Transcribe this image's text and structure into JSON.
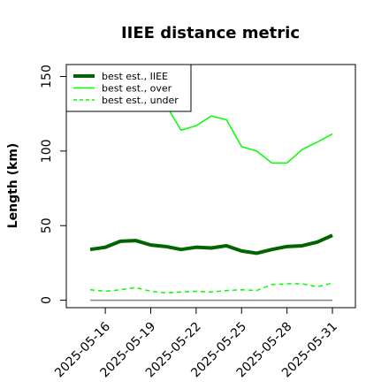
{
  "chart_data": {
    "type": "line",
    "title": "IIEE distance metric",
    "xlabel": "",
    "ylabel": "Length (km)",
    "x": [
      "2025-05-15",
      "2025-05-16",
      "2025-05-17",
      "2025-05-18",
      "2025-05-19",
      "2025-05-20",
      "2025-05-21",
      "2025-05-22",
      "2025-05-23",
      "2025-05-24",
      "2025-05-25",
      "2025-05-26",
      "2025-05-27",
      "2025-05-28",
      "2025-05-29",
      "2025-05-30",
      "2025-05-31"
    ],
    "xticks": [
      "2025-05-16",
      "2025-05-19",
      "2025-05-22",
      "2025-05-25",
      "2025-05-28",
      "2025-05-31"
    ],
    "ylim": [
      -5,
      158
    ],
    "yticks": [
      0,
      50,
      100,
      150
    ],
    "grid": false,
    "legend_position": "top-left",
    "series": [
      {
        "name": "best est., IIEE",
        "color": "#006400",
        "style": "solid",
        "width": 4,
        "values": [
          34,
          35.5,
          39.5,
          40,
          37,
          36,
          34,
          35.5,
          35,
          36.5,
          33,
          31.5,
          34,
          36,
          36.5,
          39,
          43.5
        ]
      },
      {
        "name": "best est., over",
        "color": "#00ff00",
        "style": "solid",
        "width": 1.5,
        "values": [
          null,
          null,
          null,
          null,
          null,
          131,
          114,
          117,
          123.5,
          121,
          103,
          100,
          92,
          92,
          101,
          106,
          111.5
        ]
      },
      {
        "name": "best est., under",
        "color": "#00ff00",
        "style": "dashed",
        "width": 1.5,
        "values": [
          7,
          6,
          7,
          8.5,
          6,
          5,
          5.5,
          6,
          5.5,
          6.5,
          7,
          6.5,
          10.5,
          11,
          11,
          9,
          11.5
        ]
      }
    ],
    "baseline": {
      "value": 0,
      "color": "#888888"
    }
  }
}
